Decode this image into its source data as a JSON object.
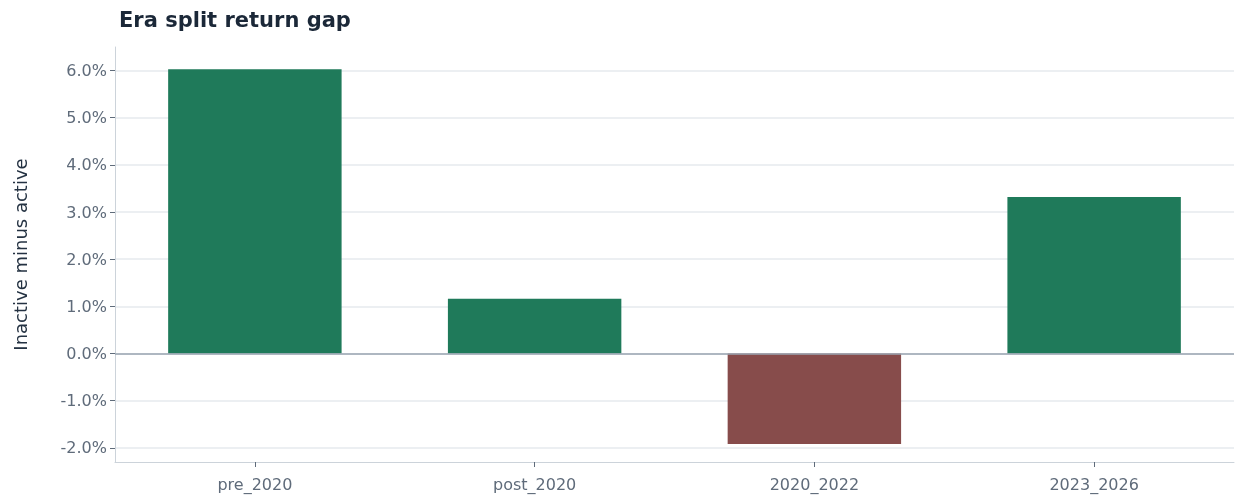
{
  "chart_data": {
    "type": "bar",
    "title": "Era split return gap",
    "ylabel": "Inactive minus active",
    "categories": [
      "pre_2020",
      "post_2020",
      "2020_2022",
      "2023_2026"
    ],
    "values": [
      6.03,
      1.16,
      -1.92,
      3.32
    ],
    "colors": [
      "#1f7a5a",
      "#1f7a5a",
      "#874c4b",
      "#1f7a5a"
    ],
    "ylim": [
      -2.3,
      6.5
    ],
    "yticks": [
      {
        "value": -2,
        "label": "-2.0%"
      },
      {
        "value": -1,
        "label": "-1.0%"
      },
      {
        "value": 0,
        "label": "0.0%"
      },
      {
        "value": 1,
        "label": "1.0%"
      },
      {
        "value": 2,
        "label": "2.0%"
      },
      {
        "value": 3,
        "label": "3.0%"
      },
      {
        "value": 4,
        "label": "4.0%"
      },
      {
        "value": 5,
        "label": "5.0%"
      },
      {
        "value": 6,
        "label": "6.0%"
      }
    ],
    "ref_lines": [
      {
        "axis": "y",
        "value": 0,
        "color": "#9aa5b1"
      }
    ],
    "grid": "y"
  }
}
